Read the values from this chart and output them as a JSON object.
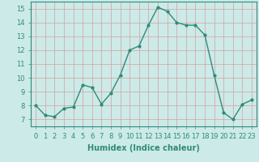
{
  "x": [
    0,
    1,
    2,
    3,
    4,
    5,
    6,
    7,
    8,
    9,
    10,
    11,
    12,
    13,
    14,
    15,
    16,
    17,
    18,
    19,
    20,
    21,
    22,
    23
  ],
  "y": [
    8.0,
    7.3,
    7.2,
    7.8,
    7.9,
    9.5,
    9.3,
    8.1,
    8.9,
    10.2,
    12.0,
    12.3,
    13.8,
    15.1,
    14.8,
    14.0,
    13.8,
    13.8,
    13.1,
    10.2,
    7.5,
    7.0,
    8.1,
    8.4
  ],
  "line_color": "#2e8b7a",
  "marker": "o",
  "marker_size": 2.0,
  "bg_color": "#cceae7",
  "grid_color": "#b0d8d4",
  "xlabel": "Humidex (Indice chaleur)",
  "xlim": [
    -0.5,
    23.5
  ],
  "ylim": [
    6.5,
    15.5
  ],
  "yticks": [
    7,
    8,
    9,
    10,
    11,
    12,
    13,
    14,
    15
  ],
  "xticks": [
    0,
    1,
    2,
    3,
    4,
    5,
    6,
    7,
    8,
    9,
    10,
    11,
    12,
    13,
    14,
    15,
    16,
    17,
    18,
    19,
    20,
    21,
    22,
    23
  ],
  "tick_fontsize": 6,
  "xlabel_fontsize": 7,
  "line_width": 1.0
}
